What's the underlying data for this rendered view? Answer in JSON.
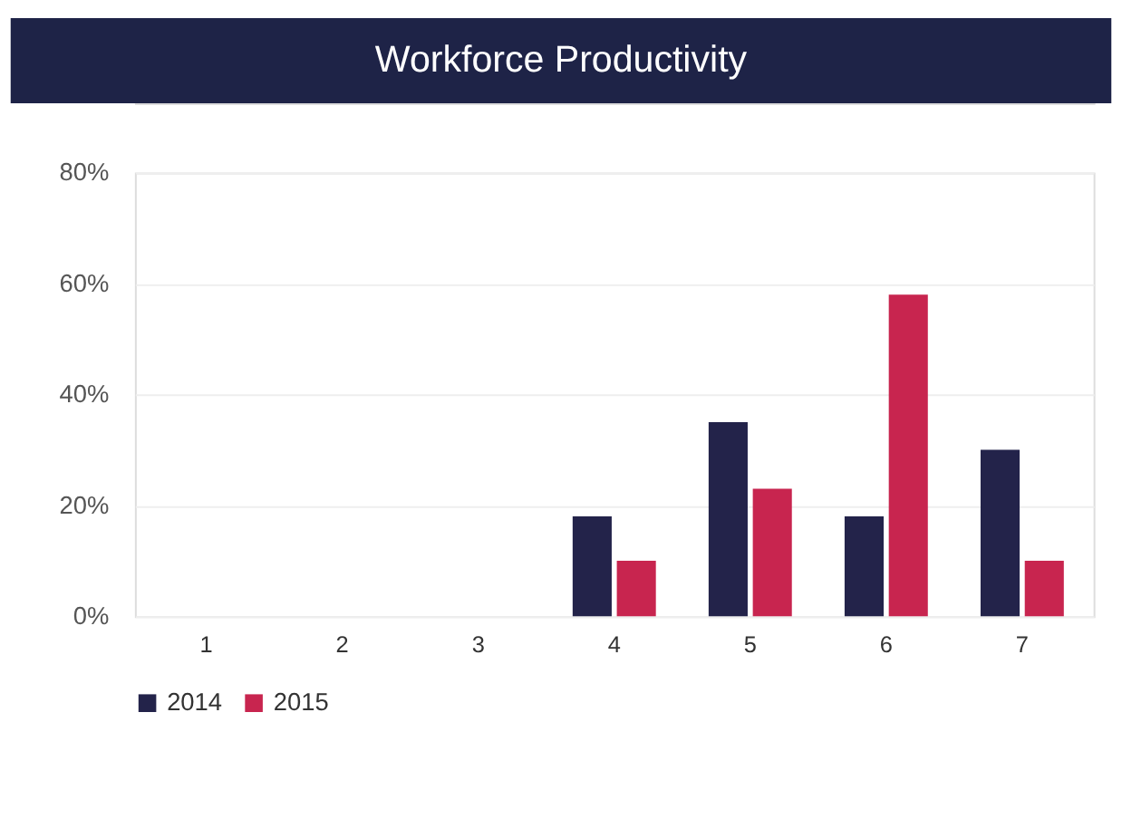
{
  "chart_data": {
    "type": "bar",
    "title": "Workforce Productivity",
    "categories": [
      "1",
      "2",
      "3",
      "4",
      "5",
      "6",
      "7"
    ],
    "series": [
      {
        "name": "2014",
        "color": "#23234a",
        "values": [
          null,
          null,
          null,
          18,
          35,
          18,
          30
        ]
      },
      {
        "name": "2015",
        "color": "#c8254f",
        "values": [
          null,
          null,
          null,
          10,
          23,
          58,
          10
        ]
      }
    ],
    "ylim": [
      0,
      80
    ],
    "yticks": [
      {
        "value": 0,
        "label": "0%"
      },
      {
        "value": 20,
        "label": "20%"
      },
      {
        "value": 40,
        "label": "40%"
      },
      {
        "value": 60,
        "label": "60%"
      },
      {
        "value": 80,
        "label": "80%"
      }
    ],
    "grid": "y",
    "legend": "bottom"
  }
}
